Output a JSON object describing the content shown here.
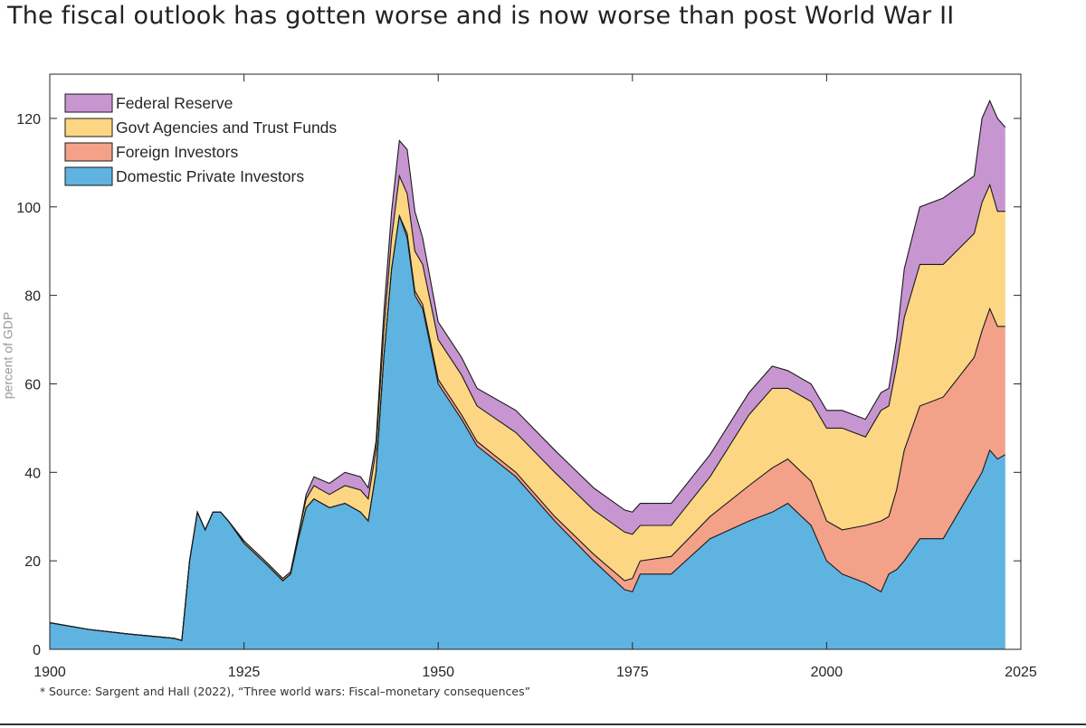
{
  "slide": {
    "title": "The fiscal outlook has gotten worse and is now worse than post World War II",
    "footnote_marker": "*",
    "footnote": "Source: Sargent and Hall (2022), “Three world wars: Fiscal–monetary consequences”",
    "side_label": "percent of GDP"
  },
  "chart_data": {
    "type": "area",
    "stacked": true,
    "xlim": [
      1900,
      2025
    ],
    "ylim": [
      0,
      130
    ],
    "xticks": [
      1900,
      1925,
      1950,
      1975,
      2000,
      2025
    ],
    "yticks": [
      0,
      20,
      40,
      60,
      80,
      100,
      120
    ],
    "legend_position": "top-left",
    "grid": false,
    "colors": {
      "Domestic Private Investors": "#5fb3e0",
      "Foreign Investors": "#f4a18a",
      "Govt Agencies and Trust Funds": "#fdd684",
      "Federal Reserve": "#c796d1"
    },
    "legend_order": [
      "Federal Reserve",
      "Govt Agencies and Trust Funds",
      "Foreign Investors",
      "Domestic Private Investors"
    ],
    "x": [
      1900,
      1905,
      1910,
      1916,
      1917,
      1918,
      1919,
      1920,
      1921,
      1922,
      1923,
      1925,
      1928,
      1930,
      1931,
      1932,
      1933,
      1934,
      1936,
      1938,
      1940,
      1941,
      1942,
      1943,
      1944,
      1945,
      1946,
      1947,
      1948,
      1950,
      1953,
      1955,
      1960,
      1965,
      1970,
      1974,
      1975,
      1976,
      1980,
      1985,
      1990,
      1993,
      1995,
      1998,
      2000,
      2002,
      2005,
      2007,
      2008,
      2009,
      2010,
      2012,
      2015,
      2019,
      2020,
      2021,
      2022,
      2023
    ],
    "series": [
      {
        "name": "Domestic Private Investors",
        "values": [
          6,
          4.5,
          3.5,
          2.5,
          2,
          20,
          31,
          27,
          31,
          31,
          29,
          24,
          19,
          15.5,
          17,
          25,
          32,
          34,
          32,
          33,
          31,
          29,
          40,
          66,
          86,
          98,
          93,
          80,
          77,
          60,
          52,
          46,
          39,
          29,
          20,
          13.5,
          13,
          17,
          17,
          25,
          29,
          31,
          33,
          28,
          20,
          17,
          15,
          13,
          17,
          18,
          20,
          25,
          25,
          37,
          40,
          45,
          43,
          44
        ]
      },
      {
        "name": "Foreign Investors",
        "values": [
          0,
          0,
          0,
          0,
          0,
          0,
          0,
          0,
          0,
          0,
          0,
          0,
          0,
          0,
          0,
          0,
          0,
          0,
          0,
          0,
          0,
          0,
          0,
          0,
          0,
          0,
          1,
          1,
          1,
          1,
          1,
          1,
          1,
          1,
          1.5,
          2,
          3,
          3,
          4,
          5,
          8,
          10,
          10,
          10,
          9,
          10,
          13,
          16,
          13,
          18,
          25,
          30,
          32,
          29,
          32,
          32,
          30,
          29
        ]
      },
      {
        "name": "Govt Agencies and Trust Funds",
        "values": [
          0,
          0,
          0,
          0,
          0,
          0,
          0,
          0,
          0,
          0,
          0,
          0.5,
          0.5,
          0.5,
          0.5,
          1,
          2,
          3,
          3,
          4,
          5,
          5,
          5,
          6,
          7,
          9,
          9,
          9,
          9,
          9,
          9,
          8,
          9,
          10,
          10,
          11,
          10,
          8,
          7,
          9,
          16,
          18,
          16,
          18,
          21,
          23,
          20,
          25,
          25,
          28,
          30,
          32,
          30,
          28,
          29,
          28,
          26,
          26
        ]
      },
      {
        "name": "Federal Reserve",
        "values": [
          0,
          0,
          0,
          0,
          0,
          0,
          0,
          0,
          0,
          0,
          0,
          0,
          0,
          0,
          0,
          0,
          1,
          2,
          2.5,
          3,
          3,
          2.5,
          2,
          4,
          6,
          8,
          10,
          9,
          6,
          4,
          4,
          4,
          5,
          5,
          5,
          5,
          5,
          5,
          5,
          5,
          5,
          5,
          4,
          4,
          4,
          4,
          4,
          4,
          4,
          6,
          11,
          13,
          15,
          13,
          19,
          19,
          21,
          19
        ]
      }
    ]
  }
}
